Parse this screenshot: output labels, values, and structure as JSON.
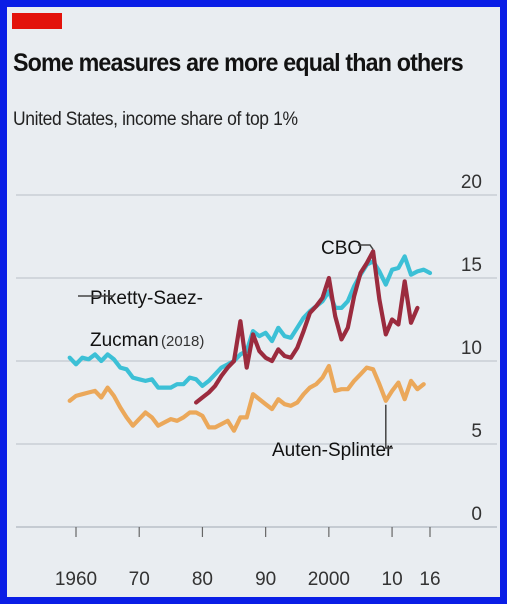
{
  "header": {
    "title": "Some measures are more equal than others",
    "subtitle": "United States, income share of top 1%"
  },
  "colors": {
    "frame": "#0a1ee6",
    "background": "#e9edf1",
    "accent": "#e3120b",
    "psz": "#3cc0d6",
    "cbo": "#9b2b3e",
    "auten": "#eba85a",
    "grid": "#b9c0c7"
  },
  "chart_data": {
    "type": "line",
    "title": "Some measures are more equal than others",
    "subtitle": "United States, income share of top 1%",
    "xlim": [
      1957,
      2016.5
    ],
    "ylim": [
      0,
      20
    ],
    "x_ticks": [
      {
        "value": 1960,
        "label": "1960"
      },
      {
        "value": 1970,
        "label": "70"
      },
      {
        "value": 1980,
        "label": "80"
      },
      {
        "value": 1990,
        "label": "90"
      },
      {
        "value": 2000,
        "label": "2000"
      },
      {
        "value": 2010,
        "label": "10"
      },
      {
        "value": 2016,
        "label": "16"
      }
    ],
    "y_ticks": [
      0,
      5,
      10,
      15,
      20
    ],
    "y_axis_side": "right",
    "grid": true,
    "series": [
      {
        "name": "Piketty-Saez-Zucman",
        "name_lines": [
          "Piketty-Saez-",
          "Zucman"
        ],
        "year_note": "(2018)",
        "color": "#3cc0d6",
        "x": [
          1959,
          1960,
          1961,
          1962,
          1963,
          1964,
          1965,
          1966,
          1967,
          1968,
          1969,
          1970,
          1971,
          1972,
          1973,
          1974,
          1975,
          1976,
          1977,
          1978,
          1979,
          1980,
          1981,
          1982,
          1983,
          1984,
          1985,
          1986,
          1987,
          1988,
          1989,
          1990,
          1991,
          1992,
          1993,
          1994,
          1995,
          1996,
          1997,
          1998,
          1999,
          2000,
          2001,
          2002,
          2003,
          2004,
          2005,
          2006,
          2007,
          2008,
          2009,
          2010,
          2011,
          2012,
          2013,
          2014,
          2015,
          2016
        ],
        "values": [
          10.2,
          9.8,
          10.2,
          10.1,
          10.4,
          10.0,
          10.4,
          10.1,
          9.6,
          9.5,
          9.0,
          8.9,
          8.8,
          8.9,
          8.4,
          8.4,
          8.4,
          8.6,
          8.6,
          9.0,
          8.9,
          8.5,
          8.8,
          9.2,
          9.6,
          9.8,
          10.0,
          10.4,
          10.6,
          11.8,
          11.5,
          11.7,
          11.2,
          12.0,
          11.5,
          11.4,
          12.0,
          12.6,
          13.0,
          13.3,
          13.6,
          14.2,
          13.2,
          13.2,
          13.6,
          14.5,
          15.2,
          15.8,
          16.0,
          15.4,
          14.6,
          15.5,
          15.6,
          16.3,
          15.2,
          15.4,
          15.5,
          15.3
        ]
      },
      {
        "name": "CBO",
        "color": "#9b2b3e",
        "x": [
          1979,
          1980,
          1981,
          1982,
          1983,
          1984,
          1985,
          1986,
          1987,
          1988,
          1989,
          1990,
          1991,
          1992,
          1993,
          1994,
          1995,
          1996,
          1997,
          1998,
          1999,
          2000,
          2001,
          2002,
          2003,
          2004,
          2005,
          2006,
          2007,
          2008,
          2009,
          2010,
          2011,
          2012,
          2013,
          2014
        ],
        "values": [
          7.5,
          7.8,
          8.1,
          8.5,
          9.1,
          9.6,
          10.0,
          12.4,
          9.6,
          11.6,
          10.6,
          10.2,
          10.0,
          10.7,
          10.3,
          10.2,
          10.8,
          11.8,
          12.9,
          13.3,
          13.8,
          15.0,
          12.7,
          11.3,
          12.0,
          13.9,
          15.3,
          15.9,
          16.6,
          13.7,
          11.6,
          12.5,
          12.2,
          14.8,
          12.3,
          13.2
        ]
      },
      {
        "name": "Auten-Splinter",
        "color": "#eba85a",
        "x": [
          1959,
          1960,
          1961,
          1962,
          1963,
          1964,
          1965,
          1966,
          1967,
          1968,
          1969,
          1970,
          1971,
          1972,
          1973,
          1974,
          1975,
          1976,
          1977,
          1978,
          1979,
          1980,
          1981,
          1982,
          1983,
          1984,
          1985,
          1986,
          1987,
          1988,
          1989,
          1990,
          1991,
          1992,
          1993,
          1994,
          1995,
          1996,
          1997,
          1998,
          1999,
          2000,
          2001,
          2002,
          2003,
          2004,
          2005,
          2006,
          2007,
          2008,
          2009,
          2010,
          2011,
          2012,
          2013,
          2014,
          2015
        ],
        "values": [
          7.6,
          7.9,
          8.0,
          8.1,
          8.2,
          7.8,
          8.4,
          7.9,
          7.2,
          6.6,
          6.1,
          6.5,
          6.9,
          6.6,
          6.1,
          6.3,
          6.5,
          6.4,
          6.6,
          6.9,
          6.9,
          6.7,
          6.0,
          6.0,
          6.2,
          6.4,
          5.8,
          6.6,
          6.6,
          8.0,
          7.7,
          7.4,
          7.1,
          7.7,
          7.4,
          7.3,
          7.5,
          8.0,
          8.4,
          8.6,
          9.0,
          9.7,
          8.2,
          8.3,
          8.3,
          8.8,
          9.2,
          9.6,
          9.5,
          8.6,
          7.6,
          8.2,
          8.7,
          7.7,
          8.8,
          8.3,
          8.6
        ]
      }
    ],
    "annotations": [
      {
        "text": "CBO",
        "series": "CBO"
      },
      {
        "text": "Auten-Splinter",
        "series": "Auten-Splinter"
      }
    ]
  }
}
